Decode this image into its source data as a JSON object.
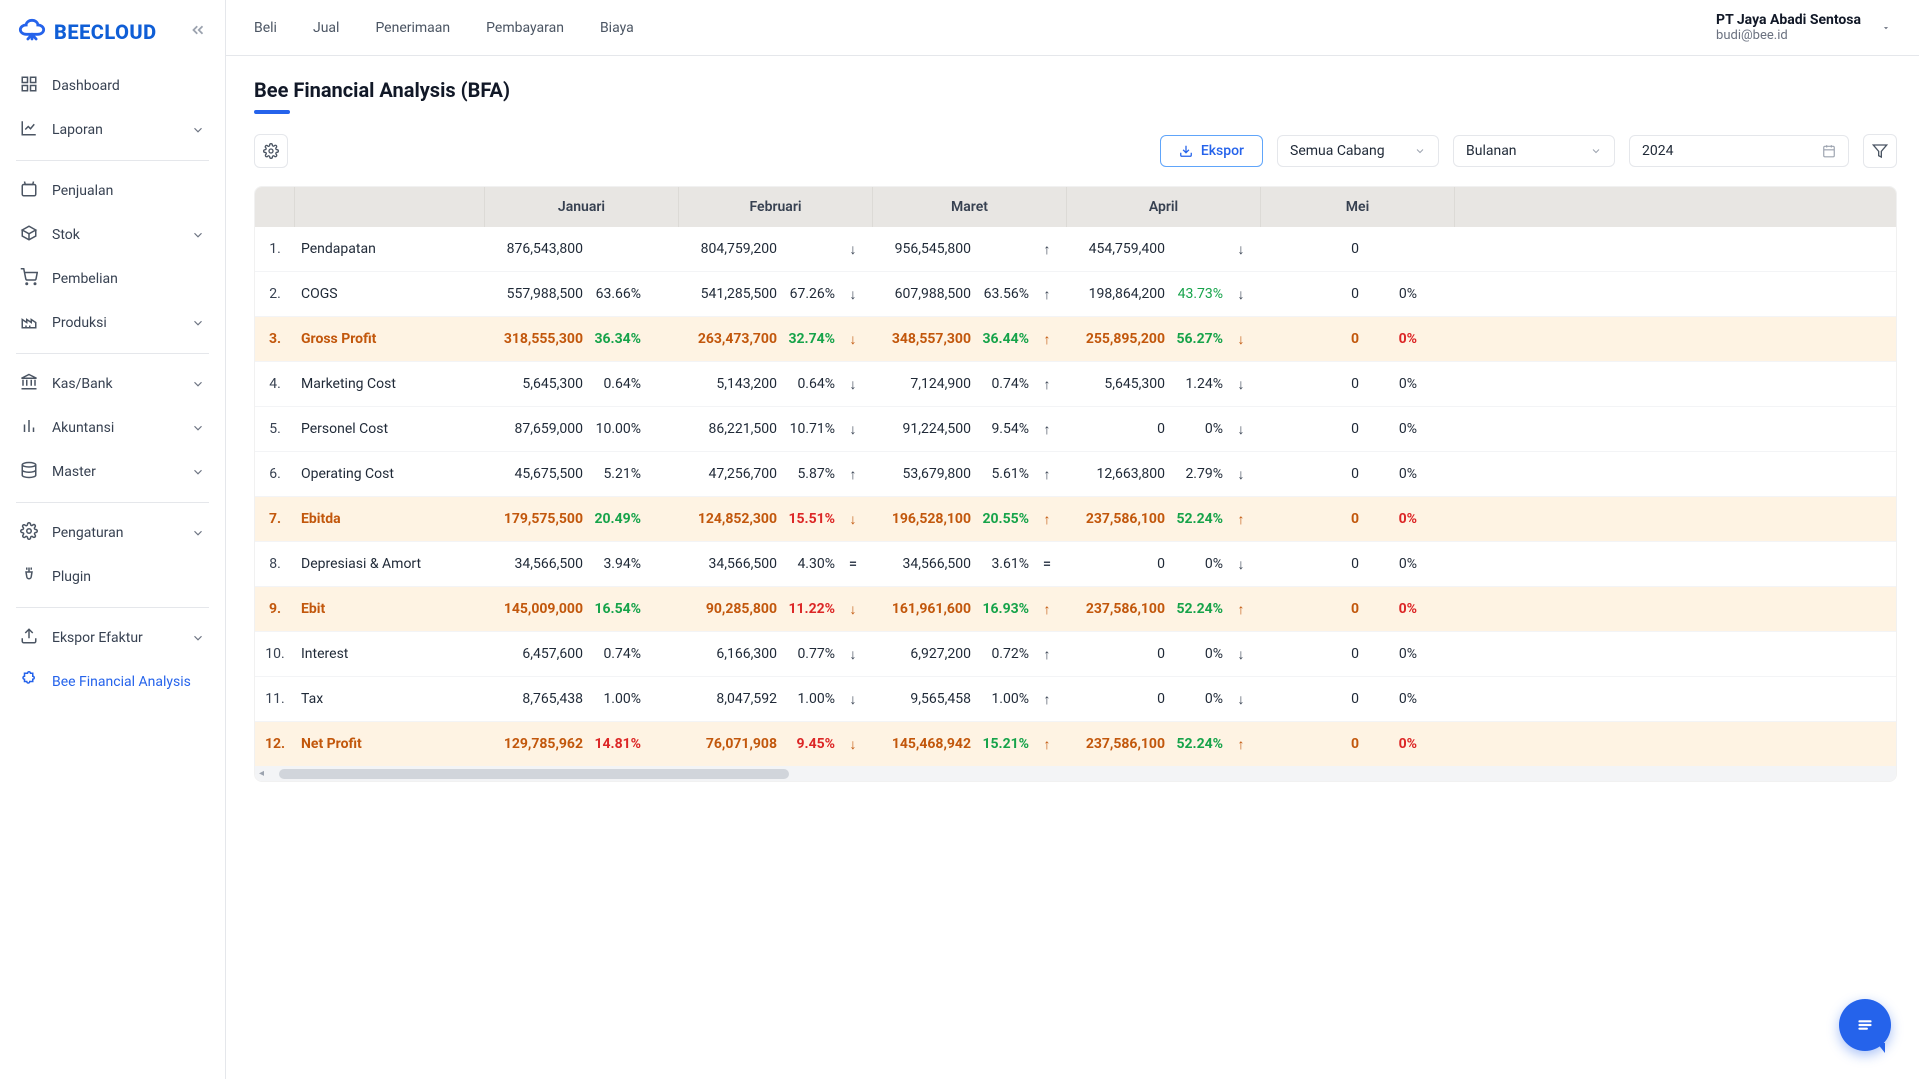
{
  "brand": {
    "name": "BEECLOUD"
  },
  "account": {
    "name": "PT Jaya Abadi Sentosa",
    "email": "budi@bee.id"
  },
  "topnav": [
    "Beli",
    "Jual",
    "Penerimaan",
    "Pembayaran",
    "Biaya"
  ],
  "sidebar": {
    "groups": [
      [
        {
          "label": "Dashboard",
          "icon": "grid",
          "chev": false
        },
        {
          "label": "Laporan",
          "icon": "chart",
          "chev": true
        }
      ],
      [
        {
          "label": "Penjualan",
          "icon": "bag",
          "chev": false
        },
        {
          "label": "Stok",
          "icon": "box",
          "chev": true
        },
        {
          "label": "Pembelian",
          "icon": "cart",
          "chev": false
        },
        {
          "label": "Produksi",
          "icon": "factory",
          "chev": true
        }
      ],
      [
        {
          "label": "Kas/Bank",
          "icon": "bank",
          "chev": true
        },
        {
          "label": "Akuntansi",
          "icon": "bars",
          "chev": true
        },
        {
          "label": "Master",
          "icon": "db",
          "chev": true
        }
      ],
      [
        {
          "label": "Pengaturan",
          "icon": "gear",
          "chev": true
        },
        {
          "label": "Plugin",
          "icon": "plug",
          "chev": false
        }
      ],
      [
        {
          "label": "Ekspor Efaktur",
          "icon": "export",
          "chev": true
        },
        {
          "label": "Bee Financial Analysis",
          "icon": "puzzle",
          "chev": false,
          "active": true
        }
      ]
    ]
  },
  "page": {
    "title": "Bee Financial Analysis (BFA)"
  },
  "toolbar": {
    "export": "Ekspor",
    "branch": "Semua Cabang",
    "period": "Bulanan",
    "year": "2024"
  },
  "months": [
    "Januari",
    "Februari",
    "Maret",
    "April",
    "Mei"
  ],
  "rows": [
    {
      "n": "1.",
      "label": "Pendapatan",
      "hl": false,
      "m": [
        {
          "v": "876,543,800",
          "p": "",
          "pc": "",
          "d": ""
        },
        {
          "v": "804,759,200",
          "p": "",
          "pc": "",
          "d": "↓"
        },
        {
          "v": "956,545,800",
          "p": "",
          "pc": "",
          "d": "↑"
        },
        {
          "v": "454,759,400",
          "p": "",
          "pc": "",
          "d": "↓"
        },
        {
          "v": "0",
          "p": "",
          "pc": "",
          "d": ""
        }
      ]
    },
    {
      "n": "2.",
      "label": "COGS",
      "hl": false,
      "m": [
        {
          "v": "557,988,500",
          "p": "63.66%",
          "pc": "",
          "d": ""
        },
        {
          "v": "541,285,500",
          "p": "67.26%",
          "pc": "",
          "d": "↓"
        },
        {
          "v": "607,988,500",
          "p": "63.56%",
          "pc": "",
          "d": "↑"
        },
        {
          "v": "198,864,200",
          "p": "43.73%",
          "pc": "g",
          "d": "↓"
        },
        {
          "v": "0",
          "p": "0%",
          "pc": "",
          "d": ""
        }
      ]
    },
    {
      "n": "3.",
      "label": "Gross Profit",
      "hl": true,
      "m": [
        {
          "v": "318,555,300",
          "p": "36.34%",
          "pc": "g",
          "d": ""
        },
        {
          "v": "263,473,700",
          "p": "32.74%",
          "pc": "g",
          "d": "↓"
        },
        {
          "v": "348,557,300",
          "p": "36.44%",
          "pc": "g",
          "d": "↑"
        },
        {
          "v": "255,895,200",
          "p": "56.27%",
          "pc": "g",
          "d": "↓"
        },
        {
          "v": "0",
          "p": "0%",
          "pc": "r",
          "d": ""
        }
      ]
    },
    {
      "n": "4.",
      "label": "Marketing Cost",
      "hl": false,
      "m": [
        {
          "v": "5,645,300",
          "p": "0.64%",
          "pc": "",
          "d": ""
        },
        {
          "v": "5,143,200",
          "p": "0.64%",
          "pc": "",
          "d": "↓"
        },
        {
          "v": "7,124,900",
          "p": "0.74%",
          "pc": "",
          "d": "↑"
        },
        {
          "v": "5,645,300",
          "p": "1.24%",
          "pc": "",
          "d": "↓"
        },
        {
          "v": "0",
          "p": "0%",
          "pc": "",
          "d": ""
        }
      ]
    },
    {
      "n": "5.",
      "label": "Personel Cost",
      "hl": false,
      "m": [
        {
          "v": "87,659,000",
          "p": "10.00%",
          "pc": "",
          "d": ""
        },
        {
          "v": "86,221,500",
          "p": "10.71%",
          "pc": "",
          "d": "↓"
        },
        {
          "v": "91,224,500",
          "p": "9.54%",
          "pc": "",
          "d": "↑"
        },
        {
          "v": "0",
          "p": "0%",
          "pc": "",
          "d": "↓"
        },
        {
          "v": "0",
          "p": "0%",
          "pc": "",
          "d": ""
        }
      ]
    },
    {
      "n": "6.",
      "label": "Operating Cost",
      "hl": false,
      "m": [
        {
          "v": "45,675,500",
          "p": "5.21%",
          "pc": "",
          "d": ""
        },
        {
          "v": "47,256,700",
          "p": "5.87%",
          "pc": "",
          "d": "↑"
        },
        {
          "v": "53,679,800",
          "p": "5.61%",
          "pc": "",
          "d": "↑"
        },
        {
          "v": "12,663,800",
          "p": "2.79%",
          "pc": "",
          "d": "↓"
        },
        {
          "v": "0",
          "p": "0%",
          "pc": "",
          "d": ""
        }
      ]
    },
    {
      "n": "7.",
      "label": "Ebitda",
      "hl": true,
      "m": [
        {
          "v": "179,575,500",
          "p": "20.49%",
          "pc": "g",
          "d": ""
        },
        {
          "v": "124,852,300",
          "p": "15.51%",
          "pc": "r",
          "d": "↓"
        },
        {
          "v": "196,528,100",
          "p": "20.55%",
          "pc": "g",
          "d": "↑"
        },
        {
          "v": "237,586,100",
          "p": "52.24%",
          "pc": "g",
          "d": "↑"
        },
        {
          "v": "0",
          "p": "0%",
          "pc": "r",
          "d": ""
        }
      ]
    },
    {
      "n": "8.",
      "label": "Depresiasi & Amort",
      "hl": false,
      "m": [
        {
          "v": "34,566,500",
          "p": "3.94%",
          "pc": "",
          "d": ""
        },
        {
          "v": "34,566,500",
          "p": "4.30%",
          "pc": "",
          "d": "="
        },
        {
          "v": "34,566,500",
          "p": "3.61%",
          "pc": "",
          "d": "="
        },
        {
          "v": "0",
          "p": "0%",
          "pc": "",
          "d": "↓"
        },
        {
          "v": "0",
          "p": "0%",
          "pc": "",
          "d": ""
        }
      ]
    },
    {
      "n": "9.",
      "label": "Ebit",
      "hl": true,
      "m": [
        {
          "v": "145,009,000",
          "p": "16.54%",
          "pc": "g",
          "d": ""
        },
        {
          "v": "90,285,800",
          "p": "11.22%",
          "pc": "r",
          "d": "↓"
        },
        {
          "v": "161,961,600",
          "p": "16.93%",
          "pc": "g",
          "d": "↑"
        },
        {
          "v": "237,586,100",
          "p": "52.24%",
          "pc": "g",
          "d": "↑"
        },
        {
          "v": "0",
          "p": "0%",
          "pc": "r",
          "d": ""
        }
      ]
    },
    {
      "n": "10.",
      "label": "Interest",
      "hl": false,
      "m": [
        {
          "v": "6,457,600",
          "p": "0.74%",
          "pc": "",
          "d": ""
        },
        {
          "v": "6,166,300",
          "p": "0.77%",
          "pc": "",
          "d": "↓"
        },
        {
          "v": "6,927,200",
          "p": "0.72%",
          "pc": "",
          "d": "↑"
        },
        {
          "v": "0",
          "p": "0%",
          "pc": "",
          "d": "↓"
        },
        {
          "v": "0",
          "p": "0%",
          "pc": "",
          "d": ""
        }
      ]
    },
    {
      "n": "11.",
      "label": "Tax",
      "hl": false,
      "m": [
        {
          "v": "8,765,438",
          "p": "1.00%",
          "pc": "",
          "d": ""
        },
        {
          "v": "8,047,592",
          "p": "1.00%",
          "pc": "",
          "d": "↓"
        },
        {
          "v": "9,565,458",
          "p": "1.00%",
          "pc": "",
          "d": "↑"
        },
        {
          "v": "0",
          "p": "0%",
          "pc": "",
          "d": "↓"
        },
        {
          "v": "0",
          "p": "0%",
          "pc": "",
          "d": ""
        }
      ]
    },
    {
      "n": "12.",
      "label": "Net Profit",
      "hl": true,
      "m": [
        {
          "v": "129,785,962",
          "p": "14.81%",
          "pc": "r",
          "d": ""
        },
        {
          "v": "76,071,908",
          "p": "9.45%",
          "pc": "r",
          "d": "↓"
        },
        {
          "v": "145,468,942",
          "p": "15.21%",
          "pc": "g",
          "d": "↑"
        },
        {
          "v": "237,586,100",
          "p": "52.24%",
          "pc": "g",
          "d": "↑"
        },
        {
          "v": "0",
          "p": "0%",
          "pc": "r",
          "d": ""
        }
      ]
    }
  ]
}
